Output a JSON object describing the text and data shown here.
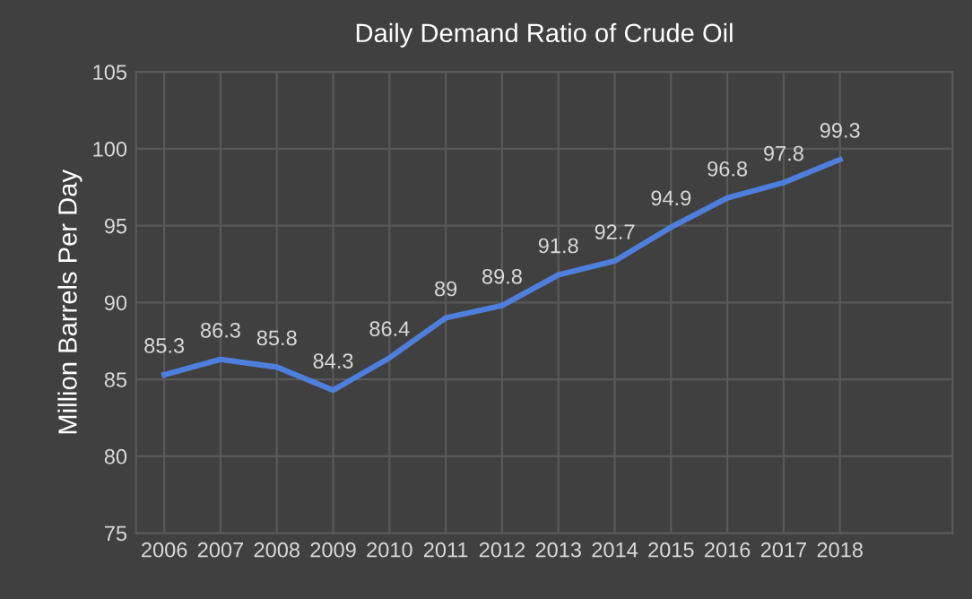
{
  "chart_data": {
    "type": "line",
    "title": "Daily Demand Ratio of Crude Oil",
    "ylabel": "Million Barrels Per Day",
    "categories": [
      "2006",
      "2007",
      "2008",
      "2009",
      "2010",
      "2011",
      "2012",
      "2013",
      "2014",
      "2015",
      "2016",
      "2017",
      "2018"
    ],
    "series": [
      {
        "color": "#4f7fdc",
        "values": [
          85.3,
          86.3,
          85.8,
          84.3,
          86.4,
          89,
          89.8,
          91.8,
          92.7,
          94.9,
          96.8,
          97.8,
          99.3
        ]
      }
    ],
    "ylim": [
      75,
      105
    ],
    "yticks": [
      75,
      80,
      85,
      90,
      95,
      100,
      105
    ],
    "grid": true,
    "data_labels": true,
    "marker": "none",
    "line_style": "solid",
    "legend": false
  }
}
